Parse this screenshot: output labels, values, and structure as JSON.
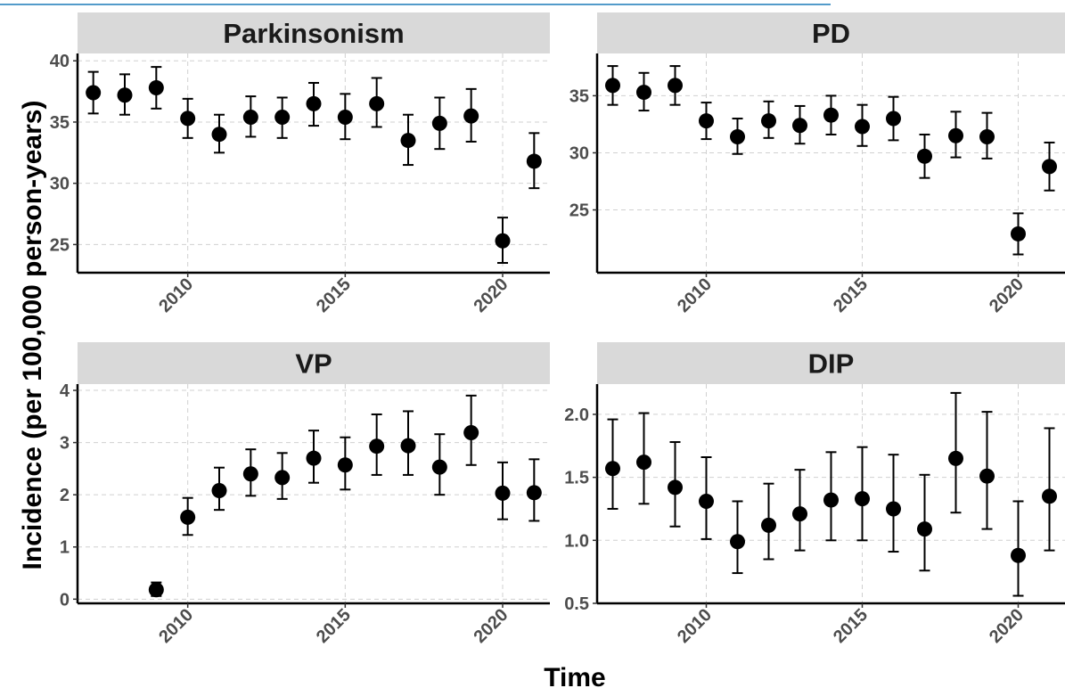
{
  "figure": {
    "top_link_text": "",
    "y_axis_label": "Incidence (per 100,000 person-years)",
    "x_axis_label": "Time",
    "colors": {
      "strip": "#d9d9d9",
      "point": "#000000",
      "grid": "#d0d0d0",
      "axis_text": "#4d4d4d"
    }
  },
  "chart_data": [
    {
      "type": "scatter",
      "title": "Parkinsonism",
      "x": [
        2007,
        2008,
        2009,
        2010,
        2011,
        2012,
        2013,
        2014,
        2015,
        2016,
        2017,
        2018,
        2019,
        2020,
        2021
      ],
      "y": [
        37.4,
        37.2,
        37.8,
        35.3,
        34.0,
        35.4,
        35.4,
        36.5,
        35.4,
        36.5,
        33.5,
        34.9,
        35.5,
        25.3,
        31.8
      ],
      "y_low": [
        35.7,
        35.6,
        36.1,
        33.7,
        32.5,
        33.8,
        33.7,
        34.7,
        33.6,
        34.6,
        31.5,
        32.8,
        33.4,
        23.5,
        29.6
      ],
      "y_high": [
        39.1,
        38.9,
        39.5,
        36.9,
        35.6,
        37.1,
        37.0,
        38.2,
        37.3,
        38.6,
        35.6,
        37.0,
        37.7,
        27.2,
        34.1
      ],
      "xlim": [
        2006.5,
        2021.5
      ],
      "ylim": [
        22.7,
        40.6
      ],
      "xticks": [
        2010,
        2015,
        2020
      ],
      "yticks": [
        25,
        30,
        35,
        40
      ],
      "ytick_labels": [
        "25",
        "30",
        "35",
        "40"
      ],
      "grid": true
    },
    {
      "type": "scatter",
      "title": "PD",
      "x": [
        2007,
        2008,
        2009,
        2010,
        2011,
        2012,
        2013,
        2014,
        2015,
        2016,
        2017,
        2018,
        2019,
        2020,
        2021
      ],
      "y": [
        35.9,
        35.3,
        35.9,
        32.8,
        31.4,
        32.8,
        32.4,
        33.3,
        32.3,
        33.0,
        29.7,
        31.5,
        31.4,
        22.9,
        28.8
      ],
      "y_low": [
        34.2,
        33.7,
        34.2,
        31.2,
        29.9,
        31.3,
        30.8,
        31.6,
        30.6,
        31.1,
        27.8,
        29.6,
        29.5,
        21.1,
        26.7
      ],
      "y_high": [
        37.6,
        37.0,
        37.6,
        34.4,
        33.0,
        34.5,
        34.1,
        35.0,
        34.2,
        34.9,
        31.6,
        33.6,
        33.5,
        24.7,
        30.9
      ],
      "xlim": [
        2006.5,
        2021.5
      ],
      "ylim": [
        19.5,
        38.7
      ],
      "xticks": [
        2010,
        2015,
        2020
      ],
      "yticks": [
        25,
        30,
        35
      ],
      "ytick_labels": [
        "25",
        "30",
        "35"
      ],
      "grid": true
    },
    {
      "type": "scatter",
      "title": "VP",
      "x": [
        2009,
        2010,
        2011,
        2012,
        2013,
        2014,
        2015,
        2016,
        2017,
        2018,
        2019,
        2020,
        2021
      ],
      "y": [
        0.18,
        1.57,
        2.08,
        2.4,
        2.33,
        2.7,
        2.57,
        2.93,
        2.94,
        2.53,
        3.19,
        2.03,
        2.04
      ],
      "y_low": [
        0.06,
        1.23,
        1.71,
        1.98,
        1.92,
        2.23,
        2.1,
        2.38,
        2.38,
        2.0,
        2.57,
        1.53,
        1.5
      ],
      "y_high": [
        0.32,
        1.94,
        2.52,
        2.87,
        2.8,
        3.23,
        3.1,
        3.54,
        3.6,
        3.16,
        3.9,
        2.62,
        2.68
      ],
      "xlim": [
        2006.5,
        2021.5
      ],
      "ylim": [
        -0.08,
        4.12
      ],
      "xticks": [
        2010,
        2015,
        2020
      ],
      "yticks": [
        0,
        1,
        2,
        3,
        4
      ],
      "ytick_labels": [
        "0",
        "1",
        "2",
        "3",
        "4"
      ],
      "grid": true
    },
    {
      "type": "scatter",
      "title": "DIP",
      "x": [
        2007,
        2008,
        2009,
        2010,
        2011,
        2012,
        2013,
        2014,
        2015,
        2016,
        2017,
        2018,
        2019,
        2020,
        2021
      ],
      "y": [
        1.57,
        1.62,
        1.42,
        1.31,
        0.99,
        1.12,
        1.21,
        1.32,
        1.33,
        1.25,
        1.09,
        1.65,
        1.51,
        0.88,
        1.35
      ],
      "y_low": [
        1.25,
        1.29,
        1.11,
        1.01,
        0.74,
        0.85,
        0.92,
        1.0,
        1.0,
        0.91,
        0.76,
        1.22,
        1.09,
        0.56,
        0.92
      ],
      "y_high": [
        1.96,
        2.01,
        1.78,
        1.66,
        1.31,
        1.45,
        1.56,
        1.7,
        1.74,
        1.68,
        1.52,
        2.17,
        2.02,
        1.31,
        1.89
      ],
      "xlim": [
        2006.5,
        2021.5
      ],
      "ylim": [
        0.5,
        2.24
      ],
      "xticks": [
        2010,
        2015,
        2020
      ],
      "yticks": [
        0.5,
        1.0,
        1.5,
        2.0
      ],
      "ytick_labels": [
        "0.5",
        "1.0",
        "1.5",
        "2.0"
      ],
      "grid": true
    }
  ]
}
